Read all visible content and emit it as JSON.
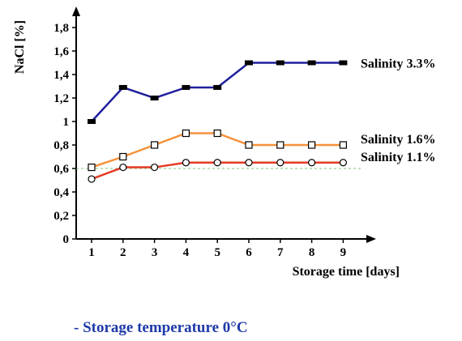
{
  "chart_data": {
    "type": "line",
    "xlabel": "Storage time [days]",
    "ylabel": "NaCl [%]",
    "ylim": [
      0,
      1.8
    ],
    "y_ticks": [
      "0",
      "0,2",
      "0,4",
      "0,6",
      "0,8",
      "1",
      "1,2",
      "1,4",
      "1,6",
      "1,8"
    ],
    "y_tick_values": [
      0,
      0.2,
      0.4,
      0.6,
      0.8,
      1.0,
      1.2,
      1.4,
      1.6,
      1.8
    ],
    "categories": [
      "1",
      "2",
      "3",
      "4",
      "5",
      "6",
      "7",
      "8",
      "9"
    ],
    "grid": false,
    "reference_line": {
      "y": 0.6,
      "style": "dashed",
      "color": "#7cc576"
    },
    "series": [
      {
        "name": "Salinity 3.3%",
        "values": [
          1.0,
          1.29,
          1.2,
          1.29,
          1.29,
          1.5,
          1.5,
          1.5,
          1.5
        ],
        "color": "#1f1f9e",
        "marker": "filled-square"
      },
      {
        "name": "Salinity 1.6%",
        "values": [
          0.61,
          0.7,
          0.8,
          0.9,
          0.9,
          0.8,
          0.8,
          0.8,
          0.8
        ],
        "color": "#f5913b",
        "marker": "open-square"
      },
      {
        "name": "Salinity 1.1%",
        "values": [
          0.51,
          0.61,
          0.61,
          0.65,
          0.65,
          0.65,
          0.65,
          0.65,
          0.65
        ],
        "color": "#e43a24",
        "marker": "open-circle"
      }
    ]
  },
  "note": "- Storage temperature 0°C"
}
